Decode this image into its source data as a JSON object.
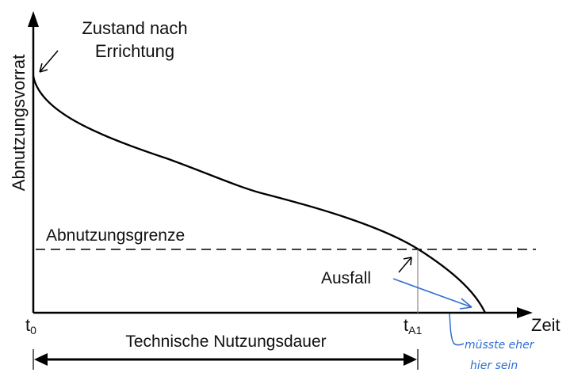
{
  "diagram": {
    "y_axis_label": "Abnutzungsvorrat",
    "x_axis_label": "Zeit",
    "annotation_initial_line1": "Zustand nach",
    "annotation_initial_line2": "Errichtung",
    "threshold_label": "Abnutzungsgrenze",
    "failure_label": "Ausfall",
    "t0_main": "t",
    "t0_sub": "0",
    "ta1_main": "t",
    "ta1_sub": "A1",
    "span_label": "Technische Nutzungsdauer",
    "handwritten_line1": "müsste eher",
    "handwritten_line2": "hier sein",
    "colors": {
      "ink": "#000000",
      "guide": "#8a8a8a",
      "handwriting": "#2f6fd1"
    }
  }
}
